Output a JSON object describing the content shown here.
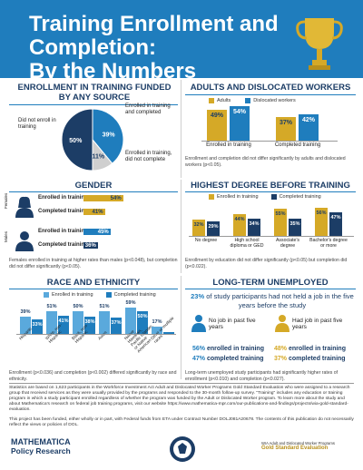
{
  "header": {
    "title_line1": "Training Enrollment and Completion:",
    "title_line2": "By the Numbers"
  },
  "colors": {
    "gold": "#d5a927",
    "blue": "#1f7dbd",
    "navy": "#1c3d66",
    "lightblue": "#5aa9dc",
    "pie_bg": "#1c3d66"
  },
  "chart_data": [
    {
      "type": "pie",
      "title": "ENROLLMENT IN TRAINING FUNDED BY ANY SOURCE",
      "slices": [
        {
          "label": "Did not enroll in training",
          "value": 50
        },
        {
          "label": "Enrolled in training and completed",
          "value": 39
        },
        {
          "label": "Enrolled in training, did not complete",
          "value": 11
        }
      ],
      "value_labels": [
        "50%",
        "39%",
        "11%"
      ]
    },
    {
      "type": "bar",
      "title": "ADULTS AND DISLOCATED WORKERS",
      "categories": [
        "Enrolled in training",
        "Completed training"
      ],
      "series": [
        {
          "name": "Adults",
          "values": [
            49,
            37
          ]
        },
        {
          "name": "Dislocated workers",
          "values": [
            54,
            42
          ]
        }
      ],
      "value_labels": [
        [
          "49%",
          "37%"
        ],
        [
          "54%",
          "42%"
        ]
      ],
      "note": "Enrollment and completion did not differ significantly by adults and dislocated workers (p<0.05)."
    },
    {
      "type": "bar",
      "title": "GENDER",
      "groups": [
        {
          "name": "Females",
          "categories": [
            "Enrolled in training",
            "Completed training"
          ],
          "values": [
            54,
            41
          ],
          "value_labels": [
            "54%",
            "41%"
          ]
        },
        {
          "name": "Males",
          "categories": [
            "Enrolled in training",
            "Completed training"
          ],
          "values": [
            45,
            36
          ],
          "value_labels": [
            "45%",
            "36%"
          ]
        }
      ],
      "note": "Females enrolled in training at higher rates than males (p<0.048), but completion did not differ significantly (p<0.05)."
    },
    {
      "type": "bar",
      "title": "HIGHEST DEGREE BEFORE TRAINING",
      "categories": [
        "No degree",
        "High school diploma or GED",
        "Associate's degree",
        "Bachelor's degree or more"
      ],
      "series": [
        {
          "name": "Enrolled in training",
          "values": [
            32,
            44,
            55,
            56
          ]
        },
        {
          "name": "Completed training",
          "values": [
            29,
            34,
            35,
            47
          ]
        }
      ],
      "value_labels": [
        [
          "32%",
          "44%",
          "55%",
          "56%"
        ],
        [
          "29%",
          "34%",
          "35%",
          "47%"
        ]
      ],
      "note": "Enrollment by education did not differ significantly (p<0.05) but completion did (p<0.022)."
    },
    {
      "type": "bar",
      "title": "RACE AND ETHNICITY",
      "categories": [
        "Hispanic",
        "White, non-Hispanic",
        "Black, non-Hispanic",
        "Asian",
        "Native Hawaiian, Pacific Islander, or Native American",
        "Other or multiple races"
      ],
      "series": [
        {
          "name": "Enrolled in training",
          "values": [
            39,
            51,
            50,
            51,
            59,
            17
          ]
        },
        {
          "name": "Completed training",
          "values": [
            33,
            41,
            38,
            37,
            50,
            5
          ]
        }
      ],
      "value_labels": [
        [
          "39%",
          "51%",
          "50%",
          "51%",
          "59%",
          "17%"
        ],
        [
          "33%",
          "41%",
          "38%",
          "37%",
          "50%",
          "5%"
        ]
      ],
      "note": "Enrollment (p<0.036) and completion (p<0.002) differed significantly by race and ethnicity."
    }
  ],
  "unemployed": {
    "title": "LONG-TERM UNEMPLOYED",
    "headline_pct": "23%",
    "headline_rest": " of study participants had not held a job in the five years before the study",
    "left_label": "No job in past five years",
    "right_label": "Had job in past five years",
    "left_enrolled_pct": "56%",
    "left_enrolled_txt": " enrolled in training",
    "left_completed_pct": "47%",
    "left_completed_txt": " completed training",
    "right_enrolled_pct": "48%",
    "right_enrolled_txt": " enrolled in training",
    "right_completed_pct": "37%",
    "right_completed_txt": " completed training",
    "note": "Long-term unemployed study participants had significantly higher rates of enrollment (p<0.010) and completion (p<0.027)."
  },
  "footer": {
    "stats_note": "Statistics are based on 1,623 participants in the Workforce Investment Act Adult and Dislocated Worker Programs Gold Standard Evaluation who were assigned to a research group that received services as they were usually provided by the programs and responded to the 30-month follow-up survey. \"Training\" includes any education or training program in which a study participant enrolled regardless of whether the program was funded by the Adult or Dislocated Worker program. To learn more about the study and about Mathematica's research on federal job training programs, visit our website https://www.mathematica-mpr.com/our-publications-and-findings/projects/wia-gold-standard-evaluation.",
    "funding_note": "This project has been funded, either wholly or in part, with Federal funds from ETA under Contract Number DOLJ081A20678. The contents of this publication do not necessarily reflect the views or policies of DOL.",
    "logo_line1": "MATHEMATICA",
    "logo_line2": "Policy Research",
    "right_logo_small": "WIA Adult and Dislocated Worker Programs",
    "right_logo_big": "Gold Standard Evaluation"
  }
}
